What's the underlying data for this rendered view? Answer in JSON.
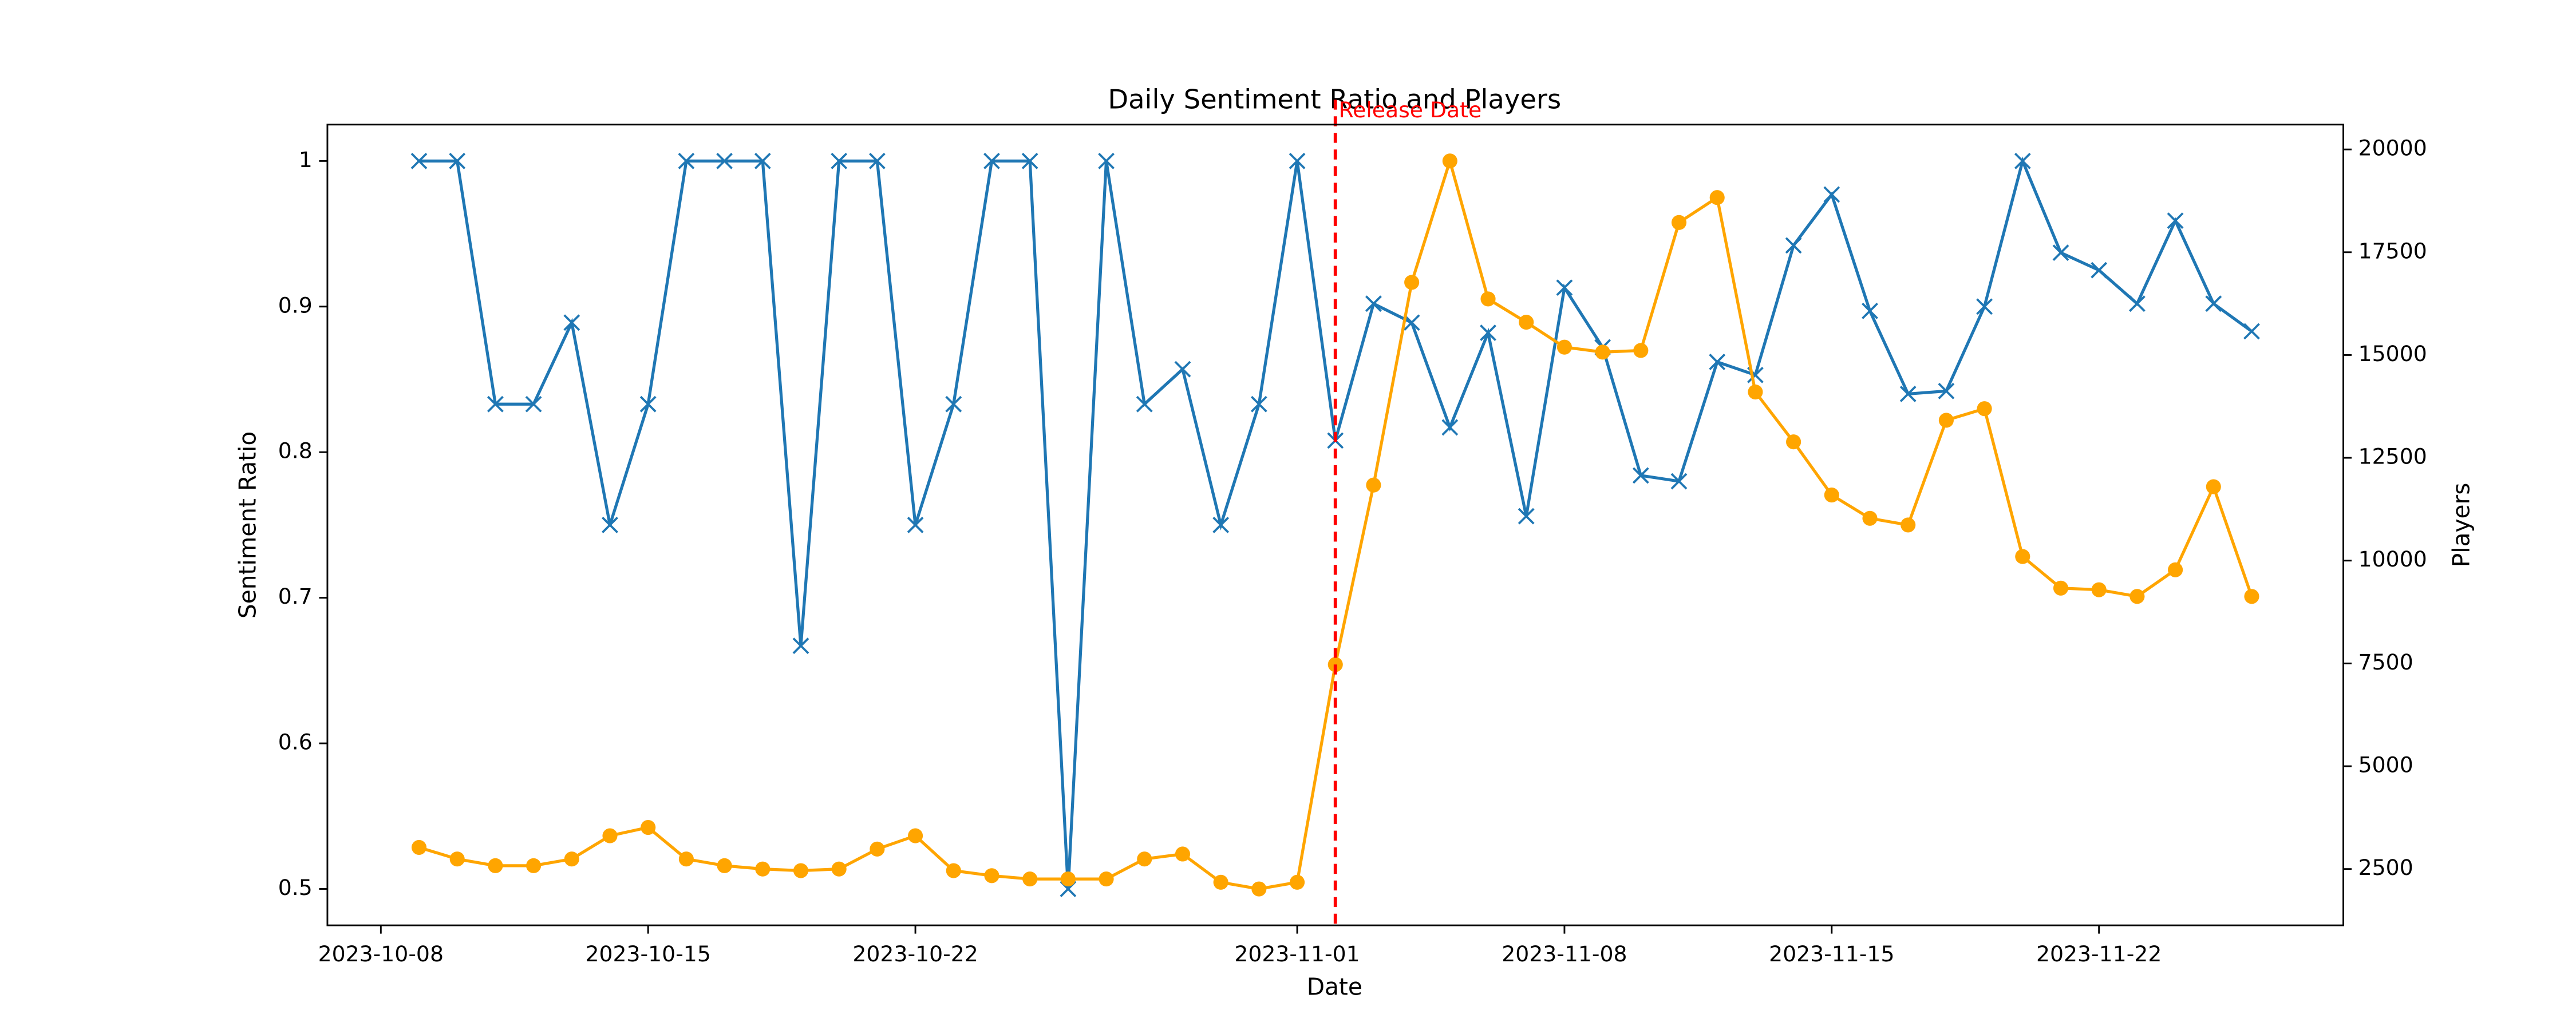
{
  "chart_data": {
    "type": "line",
    "title": "Daily Sentiment Ratio and Players",
    "xlabel": "Date",
    "ylabel": "Sentiment Ratio",
    "y2label": "Players",
    "x": [
      "2023-10-09",
      "2023-10-10",
      "2023-10-11",
      "2023-10-12",
      "2023-10-13",
      "2023-10-14",
      "2023-10-15",
      "2023-10-16",
      "2023-10-17",
      "2023-10-18",
      "2023-10-19",
      "2023-10-20",
      "2023-10-21",
      "2023-10-22",
      "2023-10-23",
      "2023-10-24",
      "2023-10-25",
      "2023-10-26",
      "2023-10-27",
      "2023-10-28",
      "2023-10-29",
      "2023-10-30",
      "2023-10-31",
      "2023-11-01",
      "2023-11-02",
      "2023-11-03",
      "2023-11-04",
      "2023-11-05",
      "2023-11-06",
      "2023-11-07",
      "2023-11-08",
      "2023-11-09",
      "2023-11-10",
      "2023-11-11",
      "2023-11-12",
      "2023-11-13",
      "2023-11-14",
      "2023-11-15",
      "2023-11-16",
      "2023-11-17",
      "2023-11-18",
      "2023-11-19",
      "2023-11-20",
      "2023-11-21",
      "2023-11-22",
      "2023-11-23",
      "2023-11-24",
      "2023-11-25",
      "2023-11-26"
    ],
    "series": [
      {
        "name": "Sentiment Ratio",
        "color": "#1f77b4",
        "marker": "x",
        "axis": "y",
        "values": [
          1.0,
          1.0,
          0.833,
          0.833,
          0.889,
          0.75,
          0.833,
          1.0,
          1.0,
          1.0,
          0.667,
          1.0,
          1.0,
          0.75,
          0.833,
          1.0,
          1.0,
          0.5,
          1.0,
          0.833,
          0.857,
          0.75,
          0.833,
          1.0,
          0.808,
          0.902,
          0.889,
          0.817,
          0.882,
          0.756,
          0.913,
          0.872,
          0.784,
          0.78,
          0.862,
          0.853,
          0.942,
          0.977,
          0.897,
          0.84,
          0.842,
          0.9,
          1.0,
          0.937,
          0.925,
          0.902,
          0.959,
          0.902,
          0.883
        ]
      },
      {
        "name": "Players",
        "color": "#ffa500",
        "marker": "o",
        "axis": "y2",
        "values": [
          3025,
          2743,
          2581,
          2581,
          2743,
          3308,
          3511,
          2743,
          2581,
          2500,
          2460,
          2500,
          2985,
          3308,
          2460,
          2338,
          2257,
          2257,
          2257,
          2743,
          2864,
          2177,
          2015,
          2177,
          7472,
          11837,
          16768,
          19719,
          16364,
          15798,
          15192,
          15071,
          15111,
          18223,
          18830,
          14101,
          12888,
          11595,
          11029,
          10867,
          13413,
          13696,
          10099,
          9331,
          9291,
          9129,
          9776,
          11797,
          9129
        ]
      }
    ],
    "xlim": [
      "2023-10-06T14:24",
      "2023-11-28T09:36"
    ],
    "xticks": [
      "2023-10-08",
      "2023-10-15",
      "2023-10-22",
      "2023-11-01",
      "2023-11-08",
      "2023-11-15",
      "2023-11-22"
    ],
    "ylim": [
      0.475,
      1.025
    ],
    "yticks": [
      0.5,
      0.6,
      0.7,
      0.8,
      0.9,
      1.0
    ],
    "y2lim": [
      1130,
      20604
    ],
    "y2ticks": [
      2500,
      5000,
      7500,
      10000,
      12500,
      15000,
      17500,
      20000
    ],
    "annotations": [
      {
        "x": "2023-11-02",
        "label": "Release Date",
        "color": "red"
      }
    ]
  }
}
